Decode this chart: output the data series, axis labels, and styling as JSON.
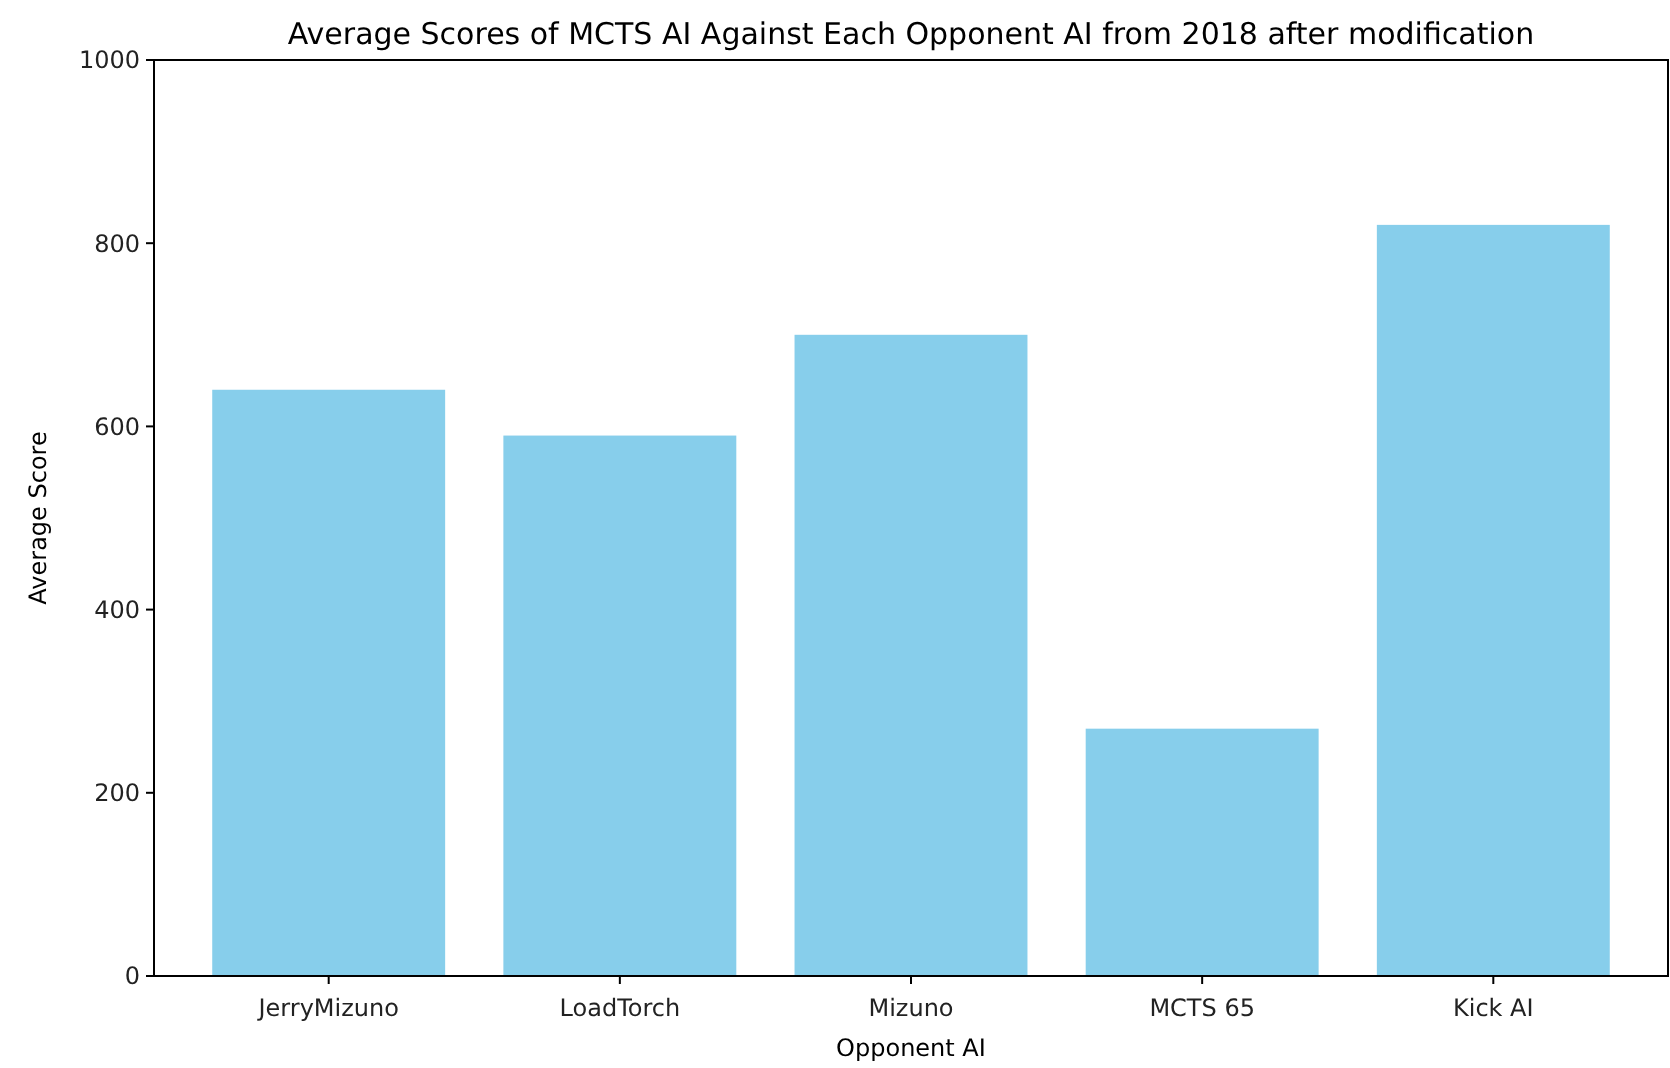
{
  "chart_data": {
    "type": "bar",
    "title": "Average Scores of MCTS AI Against Each Opponent AI from 2018 after modification",
    "xlabel": "Opponent AI",
    "ylabel": "Average Score",
    "categories": [
      "JerryMizuno",
      "LoadTorch",
      "Mizuno",
      "MCTS 65",
      "Kick AI"
    ],
    "values": [
      640,
      590,
      700,
      270,
      820
    ],
    "color": "#87ceeb",
    "ylim": [
      0,
      1000
    ],
    "yticks": [
      0,
      200,
      400,
      600,
      800,
      1000
    ],
    "grid": false
  }
}
